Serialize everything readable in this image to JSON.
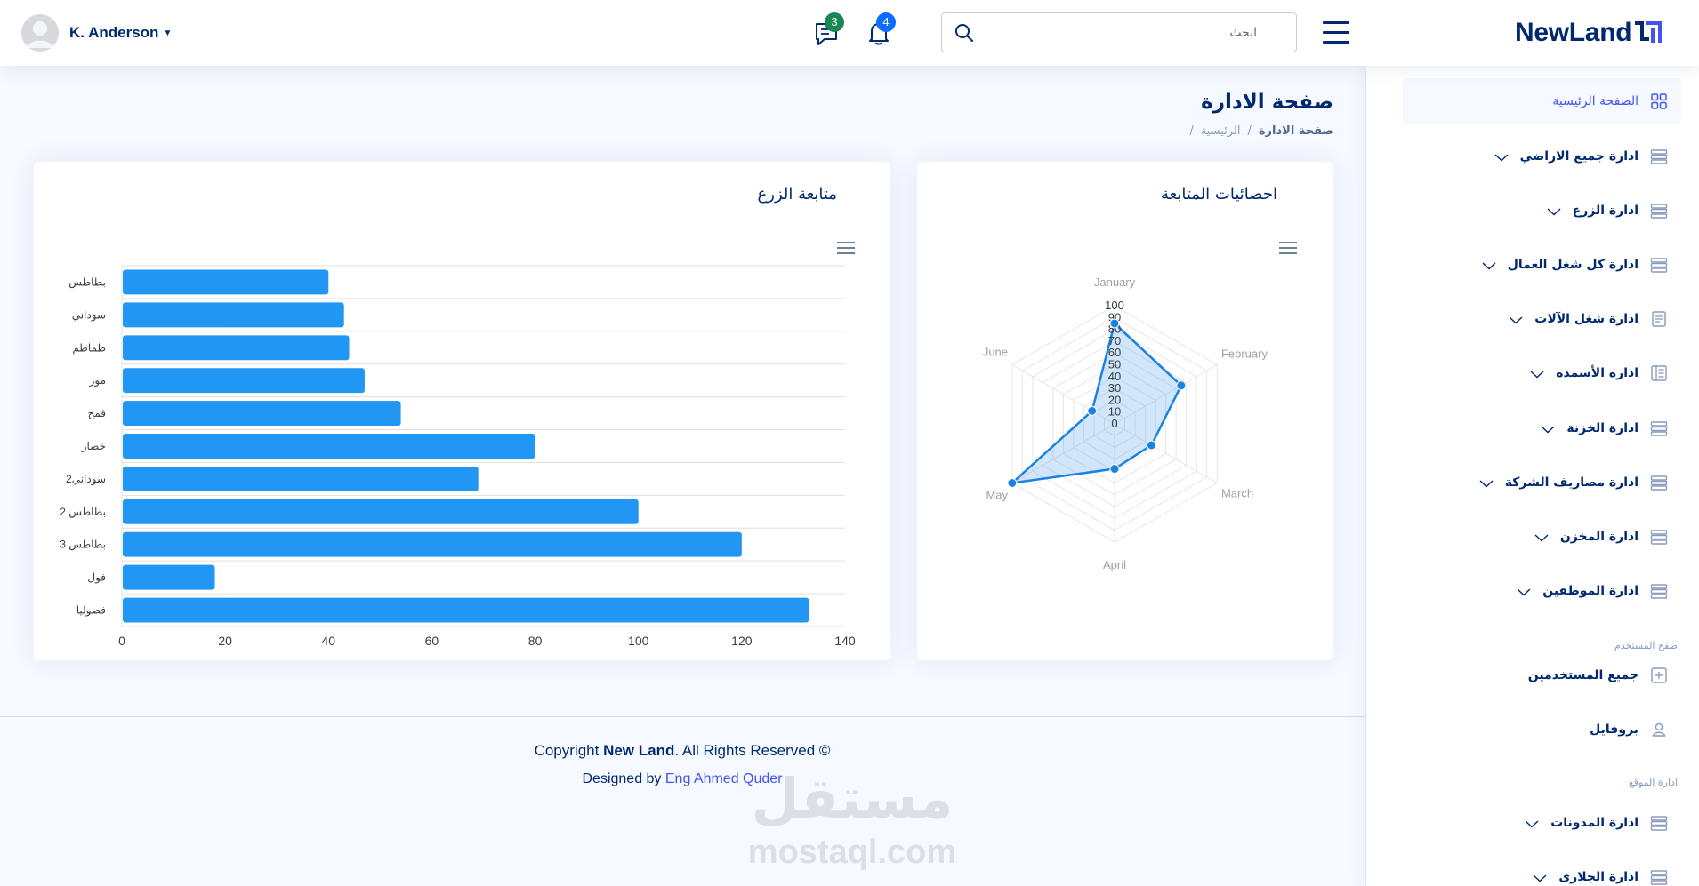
{
  "header": {
    "user_name": "K. Anderson",
    "messages_count": "3",
    "notifications_count": "4",
    "search_placeholder": "ابحث",
    "logo_text": "NewLand",
    "colors": {
      "messages_badge": "#198754",
      "notifications_badge": "#0d6efd",
      "logo": "#012970"
    }
  },
  "sidebar": {
    "items": [
      {
        "label": "الصفحة الرئيسية",
        "icon": "grid-icon",
        "active": true
      },
      {
        "label": "ادارة جميع الاراضي",
        "icon": "menu-icon"
      },
      {
        "label": "ادارة الزرع",
        "icon": "menu-icon"
      },
      {
        "label": "ادارة كل شغل العمال",
        "icon": "menu-icon"
      },
      {
        "label": "ادارة شغل الآلات",
        "icon": "document-icon"
      },
      {
        "label": "ادارة الأسمدة",
        "icon": "layout-text-icon"
      },
      {
        "label": "ادارة الخزنة",
        "icon": "menu-icon"
      },
      {
        "label": "ادارة مصاريف الشركة",
        "icon": "menu-icon"
      },
      {
        "label": "ادارة المخزن",
        "icon": "menu-icon"
      },
      {
        "label": "ادارة الموظفين",
        "icon": "menu-icon"
      }
    ],
    "user_pages_heading": "صفح المستخدم",
    "user_items": [
      {
        "label": "جميع المستخدمين",
        "icon": "plus-square-icon"
      },
      {
        "label": "بروفايل",
        "icon": "person-icon"
      }
    ],
    "site_heading": "ادارة الموقع",
    "site_items": [
      {
        "label": "ادارة المدونات",
        "icon": "menu-icon"
      },
      {
        "label": "ادارة الجلارى",
        "icon": "menu-icon"
      }
    ]
  },
  "page": {
    "title": "صفحة الادارة",
    "breadcrumb": [
      "الرئيسية",
      "صفحة الادارة"
    ]
  },
  "chart_data": [
    {
      "type": "bar",
      "title": "متابعة الزرع",
      "orientation": "horizontal",
      "categories": [
        "بطاطس",
        "سوداني",
        "طماطم",
        "موز",
        "قمح",
        "خضار",
        "سوداني2",
        "بطاطس 2",
        "بطاطس 3",
        "فول",
        "فصوليا"
      ],
      "values": [
        40,
        43,
        44,
        47,
        54,
        80,
        69,
        100,
        120,
        18,
        133
      ],
      "xlim": [
        0,
        140
      ],
      "x_ticks": [
        0,
        20,
        40,
        60,
        80,
        100,
        120,
        140
      ],
      "grid": true,
      "color": "#2196f3"
    },
    {
      "type": "radar",
      "title": "احصائيات المتابعة",
      "categories": [
        "January",
        "February",
        "March",
        "April",
        "May",
        "June"
      ],
      "values": [
        85,
        65,
        36,
        38,
        100,
        22
      ],
      "range": [
        0,
        100
      ],
      "ticks": [
        0,
        10,
        20,
        30,
        40,
        50,
        60,
        70,
        80,
        90,
        100
      ],
      "color": "#1b82e5"
    }
  ],
  "footer": {
    "copyright_prefix": "Copyright ",
    "brand": "New Land",
    "copyright_suffix": ". All Rights Reserved ©",
    "designed_prefix": "Designed by ",
    "designer": "Eng Ahmed Quder"
  },
  "watermark": {
    "arabic": "مستقل",
    "latin": "mostaql.com"
  }
}
